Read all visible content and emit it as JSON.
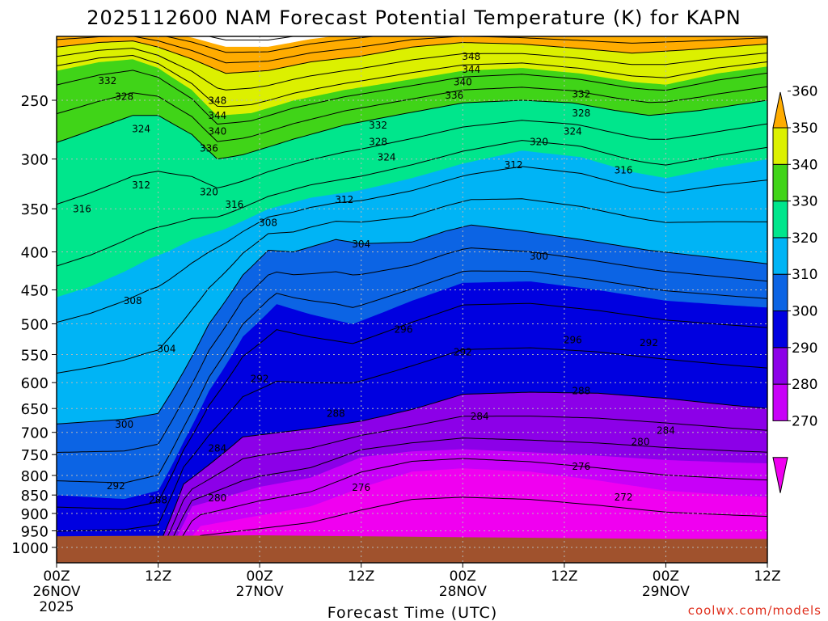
{
  "chart_data": {
    "type": "contour",
    "title": "2025112600 NAM Forecast Potential Temperature (K) for KAPN",
    "xlabel": "Forecast Time (UTC)",
    "ylabel": "",
    "credit": "coolwx.com/models",
    "x_ticks": [
      {
        "top": "00Z",
        "date": "26NOV",
        "year": "2025",
        "hour": 0
      },
      {
        "top": "12Z",
        "date": "",
        "year": "",
        "hour": 12
      },
      {
        "top": "00Z",
        "date": "27NOV",
        "year": "",
        "hour": 24
      },
      {
        "top": "12Z",
        "date": "",
        "year": "",
        "hour": 36
      },
      {
        "top": "00Z",
        "date": "28NOV",
        "year": "",
        "hour": 48
      },
      {
        "top": "12Z",
        "date": "",
        "year": "",
        "hour": 60
      },
      {
        "top": "00Z",
        "date": "29NOV",
        "year": "",
        "hour": 72
      },
      {
        "top": "12Z",
        "date": "",
        "year": "",
        "hour": 84
      }
    ],
    "x_range_hours": [
      0,
      84
    ],
    "y_ticks": [
      250,
      300,
      350,
      400,
      450,
      500,
      550,
      600,
      650,
      700,
      750,
      800,
      850,
      900,
      950,
      1000
    ],
    "y_range": [
      200,
      1020
    ],
    "y_scale": "log-pressure, reversed",
    "grid": true,
    "colorbar": {
      "labels": [
        "270",
        "280",
        "290",
        "300",
        "310",
        "320",
        "330",
        "340",
        "350",
        "360"
      ],
      "bands": [
        {
          "lo": 260,
          "hi": 270,
          "color": "#f000f0"
        },
        {
          "lo": 270,
          "hi": 280,
          "color": "#c800f8"
        },
        {
          "lo": 280,
          "hi": 290,
          "color": "#8c00e8"
        },
        {
          "lo": 290,
          "hi": 300,
          "color": "#0000e0"
        },
        {
          "lo": 300,
          "hi": 310,
          "color": "#0c64e4"
        },
        {
          "lo": 310,
          "hi": 320,
          "color": "#00b4f5"
        },
        {
          "lo": 320,
          "hi": 330,
          "color": "#00e68c"
        },
        {
          "lo": 330,
          "hi": 340,
          "color": "#40d418"
        },
        {
          "lo": 340,
          "hi": 350,
          "color": "#dcf000"
        },
        {
          "lo": 350,
          "hi": 360,
          "color": "#ffac00"
        }
      ]
    },
    "ground_color": "#a0522d",
    "contour_labels": [
      {
        "t": 19,
        "p": 250,
        "v": "348"
      },
      {
        "t": 19,
        "p": 262,
        "v": "344"
      },
      {
        "t": 19,
        "p": 275,
        "v": "340"
      },
      {
        "t": 18,
        "p": 290,
        "v": "336"
      },
      {
        "t": 49,
        "p": 218,
        "v": "348"
      },
      {
        "t": 49,
        "p": 227,
        "v": "344"
      },
      {
        "t": 48,
        "p": 236,
        "v": "340"
      },
      {
        "t": 47,
        "p": 246,
        "v": "336"
      },
      {
        "t": 6,
        "p": 235,
        "v": "332"
      },
      {
        "t": 8,
        "p": 247,
        "v": "328"
      },
      {
        "t": 10,
        "p": 273,
        "v": "324"
      },
      {
        "t": 38,
        "p": 270,
        "v": "332"
      },
      {
        "t": 38,
        "p": 284,
        "v": "328"
      },
      {
        "t": 39,
        "p": 298,
        "v": "324"
      },
      {
        "t": 62,
        "p": 245,
        "v": "332"
      },
      {
        "t": 62,
        "p": 260,
        "v": "328"
      },
      {
        "t": 61,
        "p": 275,
        "v": "324"
      },
      {
        "t": 57,
        "p": 284,
        "v": "320"
      },
      {
        "t": 54,
        "p": 305,
        "v": "312"
      },
      {
        "t": 67,
        "p": 310,
        "v": "316"
      },
      {
        "t": 18,
        "p": 332,
        "v": "320"
      },
      {
        "t": 21,
        "p": 345,
        "v": "316"
      },
      {
        "t": 10,
        "p": 325,
        "v": "312"
      },
      {
        "t": 3,
        "p": 350,
        "v": "316"
      },
      {
        "t": 34,
        "p": 340,
        "v": "312"
      },
      {
        "t": 25,
        "p": 365,
        "v": "308"
      },
      {
        "t": 36,
        "p": 390,
        "v": "304"
      },
      {
        "t": 57,
        "p": 405,
        "v": "300"
      },
      {
        "t": 9,
        "p": 465,
        "v": "308"
      },
      {
        "t": 13,
        "p": 540,
        "v": "304"
      },
      {
        "t": 41,
        "p": 508,
        "v": "296"
      },
      {
        "t": 61,
        "p": 525,
        "v": "296"
      },
      {
        "t": 48,
        "p": 545,
        "v": "292"
      },
      {
        "t": 70,
        "p": 530,
        "v": "292"
      },
      {
        "t": 24,
        "p": 592,
        "v": "292"
      },
      {
        "t": 33,
        "p": 660,
        "v": "288"
      },
      {
        "t": 62,
        "p": 615,
        "v": "288"
      },
      {
        "t": 50,
        "p": 665,
        "v": "284"
      },
      {
        "t": 72,
        "p": 695,
        "v": "284"
      },
      {
        "t": 69,
        "p": 720,
        "v": "280"
      },
      {
        "t": 8,
        "p": 682,
        "v": "300"
      },
      {
        "t": 19,
        "p": 735,
        "v": "284"
      },
      {
        "t": 7,
        "p": 825,
        "v": "292"
      },
      {
        "t": 12,
        "p": 862,
        "v": "288"
      },
      {
        "t": 19,
        "p": 857,
        "v": "280"
      },
      {
        "t": 36,
        "p": 830,
        "v": "276"
      },
      {
        "t": 62,
        "p": 777,
        "v": "276"
      },
      {
        "t": 67,
        "p": 855,
        "v": "272"
      }
    ]
  }
}
